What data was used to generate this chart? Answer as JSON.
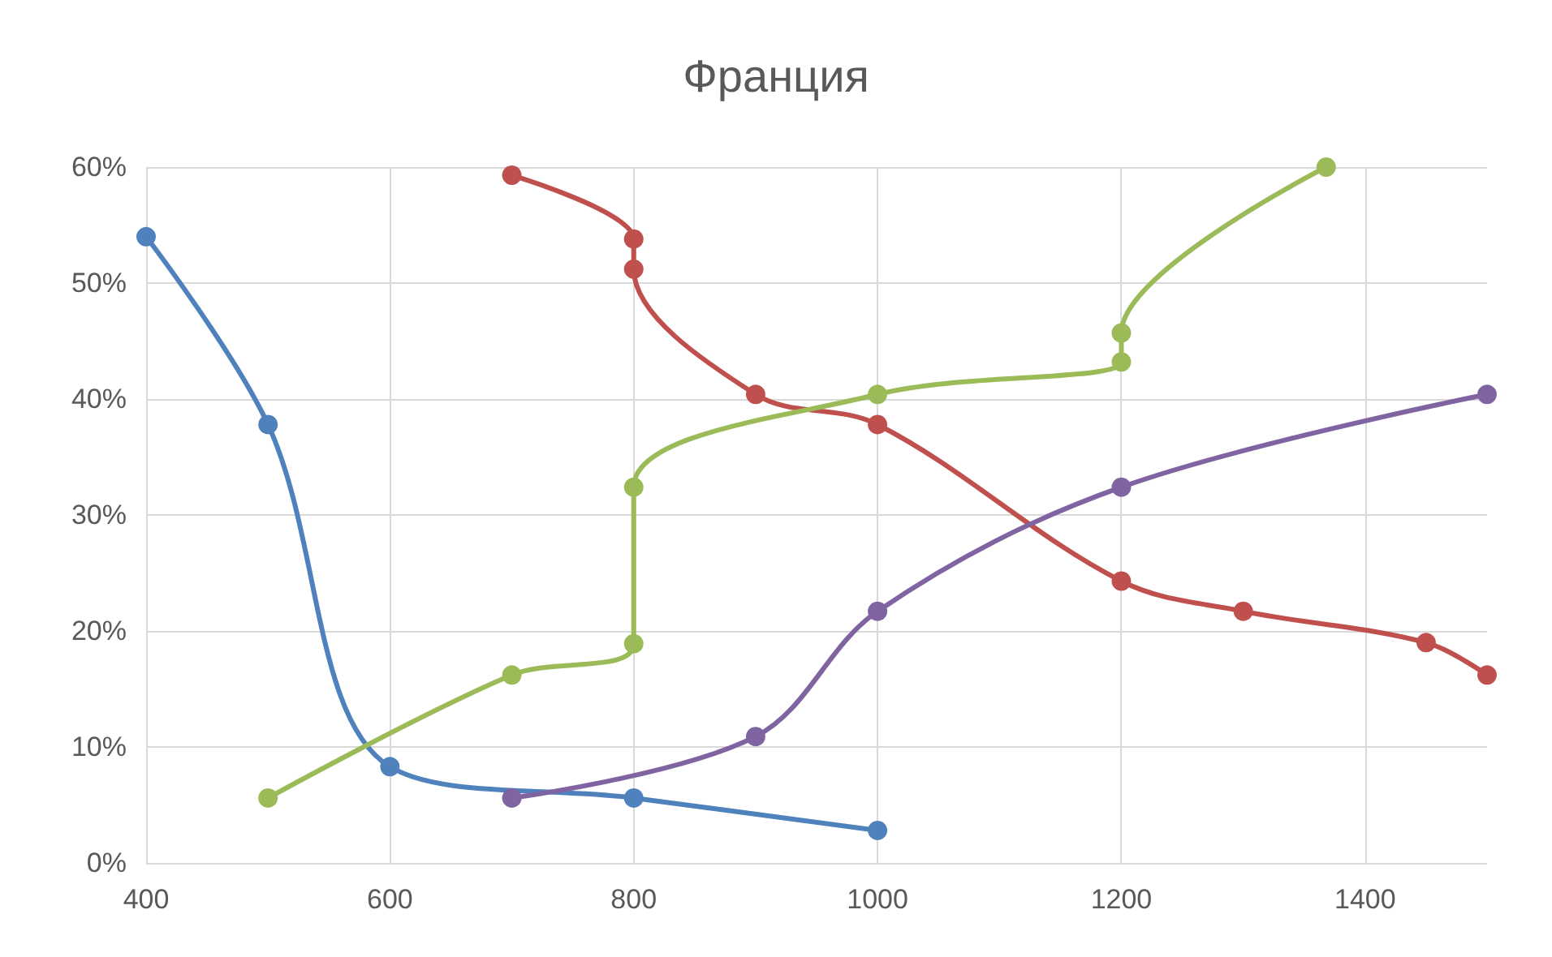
{
  "chart_data": {
    "type": "line",
    "title": "Франция",
    "xlim": [
      400,
      1500
    ],
    "xticks": [
      400,
      600,
      800,
      1000,
      1200,
      1400
    ],
    "ylim": [
      0,
      60
    ],
    "yticks": [
      {
        "value": 0,
        "label": "0%"
      },
      {
        "value": 10,
        "label": "10%"
      },
      {
        "value": 20,
        "label": "20%"
      },
      {
        "value": 30,
        "label": "30%"
      },
      {
        "value": 40,
        "label": "40%"
      },
      {
        "value": 50,
        "label": "50%"
      },
      {
        "value": 60,
        "label": "60%"
      }
    ],
    "grid": true,
    "marker": "circle",
    "line_style": "solid",
    "series": [
      {
        "color": "#4f81bd",
        "x": [
          400,
          500,
          600,
          800,
          1000
        ],
        "values": [
          54,
          37.8,
          8.3,
          5.6,
          2.8
        ]
      },
      {
        "color": "#c0504d",
        "x": [
          700,
          800,
          800,
          900,
          1000,
          1200,
          1300,
          1450,
          1500
        ],
        "values": [
          59.3,
          53.8,
          51.2,
          40.4,
          37.8,
          24.3,
          21.7,
          19,
          16.2
        ]
      },
      {
        "color": "#9bbb59",
        "x": [
          500,
          700,
          800,
          800,
          1000,
          1200,
          1200,
          1368
        ],
        "values": [
          5.6,
          16.2,
          18.9,
          32.4,
          40.4,
          43.2,
          45.7,
          60
        ]
      },
      {
        "color": "#8064a2",
        "x": [
          700,
          900,
          1000,
          1200,
          1500
        ],
        "values": [
          5.6,
          10.9,
          21.7,
          32.4,
          40.4
        ]
      }
    ]
  }
}
